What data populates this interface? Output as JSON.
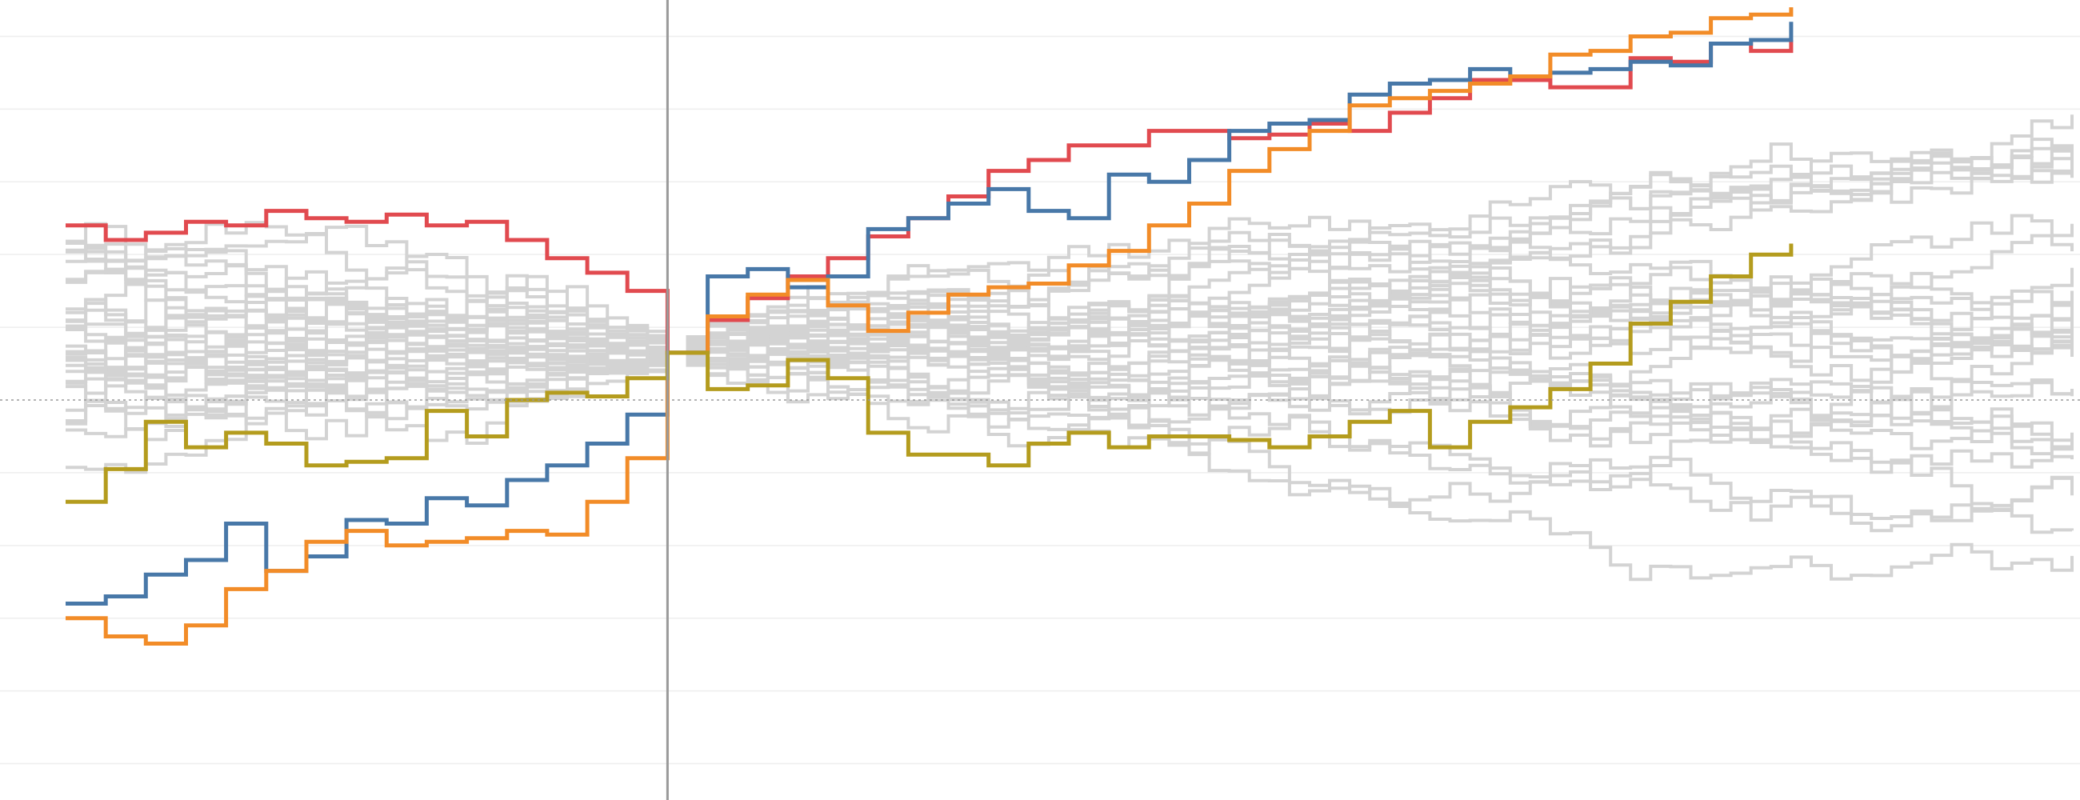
{
  "chart_data": {
    "type": "line",
    "step": true,
    "title": "",
    "xlabel": "",
    "ylabel": "",
    "xlim": [
      -15,
      35
    ],
    "ylim": [
      -11,
      11
    ],
    "zero_x": 0,
    "zero_y": 0,
    "grid": {
      "horizontal": true,
      "vertical": false,
      "levels": [
        -10,
        -8,
        -6,
        -4,
        -2,
        0,
        2,
        4,
        6,
        8,
        10
      ]
    },
    "legend": "none",
    "tick_labels": [],
    "colors": {
      "background": "#ffffff",
      "gridline": "#eeeeee",
      "zero_line": "#9a9a9a",
      "reference_line": "#9a9a9a",
      "context_series": "#d3d3d3",
      "highlight": [
        "#e14a4f",
        "#4878a8",
        "#f28c28",
        "#b49c1e"
      ]
    },
    "context": {
      "count": 32,
      "seed": 20240531,
      "x_range": [
        -15,
        35
      ],
      "anchor_x": 0,
      "note_hidden": true
    },
    "series": [
      {
        "color": "#e14a4f",
        "highlight": true,
        "points": [
          [
            -15,
            4.8
          ],
          [
            -14,
            4.4
          ],
          [
            -13,
            4.6
          ],
          [
            -12,
            4.9
          ],
          [
            -11,
            4.8
          ],
          [
            -10,
            5.2
          ],
          [
            -9,
            5.0
          ],
          [
            -8,
            4.9
          ],
          [
            -7,
            5.1
          ],
          [
            -6,
            4.8
          ],
          [
            -5,
            4.9
          ],
          [
            -4,
            4.4
          ],
          [
            -3,
            3.9
          ],
          [
            -2,
            3.5
          ],
          [
            -1,
            3.0
          ],
          [
            0,
            1.3
          ],
          [
            1,
            2.2
          ],
          [
            2,
            2.8
          ],
          [
            3,
            3.4
          ],
          [
            4,
            3.9
          ],
          [
            5,
            4.5
          ],
          [
            6,
            5.0
          ],
          [
            7,
            5.6
          ],
          [
            8,
            6.3
          ],
          [
            9,
            6.6
          ],
          [
            10,
            7.0
          ],
          [
            11,
            7.0
          ],
          [
            12,
            7.4
          ],
          [
            13,
            7.4
          ],
          [
            14,
            7.2
          ],
          [
            15,
            7.3
          ],
          [
            16,
            7.6
          ],
          [
            17,
            7.4
          ],
          [
            18,
            7.9
          ],
          [
            19,
            8.3
          ],
          [
            20,
            8.8
          ],
          [
            21,
            8.8
          ],
          [
            22,
            8.6
          ],
          [
            23,
            8.6
          ],
          [
            24,
            9.4
          ],
          [
            25,
            9.3
          ],
          [
            26,
            9.8
          ],
          [
            27,
            9.6
          ],
          [
            28,
            9.9
          ]
        ]
      },
      {
        "color": "#4878a8",
        "highlight": true,
        "points": [
          [
            -15,
            -5.6
          ],
          [
            -14,
            -5.4
          ],
          [
            -13,
            -4.8
          ],
          [
            -12,
            -4.4
          ],
          [
            -11,
            -3.4
          ],
          [
            -10,
            -4.7
          ],
          [
            -9,
            -4.3
          ],
          [
            -8,
            -3.3
          ],
          [
            -7,
            -3.4
          ],
          [
            -6,
            -2.7
          ],
          [
            -5,
            -2.9
          ],
          [
            -4,
            -2.2
          ],
          [
            -3,
            -1.8
          ],
          [
            -2,
            -1.2
          ],
          [
            -1,
            -0.4
          ],
          [
            0,
            1.3
          ],
          [
            1,
            3.4
          ],
          [
            2,
            3.6
          ],
          [
            3,
            3.1
          ],
          [
            4,
            3.4
          ],
          [
            5,
            4.7
          ],
          [
            6,
            5.0
          ],
          [
            7,
            5.4
          ],
          [
            8,
            5.8
          ],
          [
            9,
            5.2
          ],
          [
            10,
            5.0
          ],
          [
            11,
            6.2
          ],
          [
            12,
            6.0
          ],
          [
            13,
            6.6
          ],
          [
            14,
            7.4
          ],
          [
            15,
            7.6
          ],
          [
            16,
            7.7
          ],
          [
            17,
            8.4
          ],
          [
            18,
            8.7
          ],
          [
            19,
            8.8
          ],
          [
            20,
            9.1
          ],
          [
            21,
            8.9
          ],
          [
            22,
            9.0
          ],
          [
            23,
            9.1
          ],
          [
            24,
            9.3
          ],
          [
            25,
            9.2
          ],
          [
            26,
            9.8
          ],
          [
            27,
            9.9
          ],
          [
            28,
            10.4
          ]
        ]
      },
      {
        "color": "#f28c28",
        "highlight": true,
        "points": [
          [
            -15,
            -6.0
          ],
          [
            -14,
            -6.5
          ],
          [
            -13,
            -6.7
          ],
          [
            -12,
            -6.2
          ],
          [
            -11,
            -5.2
          ],
          [
            -10,
            -4.7
          ],
          [
            -9,
            -3.9
          ],
          [
            -8,
            -3.6
          ],
          [
            -7,
            -4.0
          ],
          [
            -6,
            -3.9
          ],
          [
            -5,
            -3.8
          ],
          [
            -4,
            -3.6
          ],
          [
            -3,
            -3.7
          ],
          [
            -2,
            -2.8
          ],
          [
            -1,
            -1.6
          ],
          [
            0,
            1.3
          ],
          [
            1,
            2.3
          ],
          [
            2,
            2.9
          ],
          [
            3,
            3.3
          ],
          [
            4,
            2.6
          ],
          [
            5,
            1.9
          ],
          [
            6,
            2.4
          ],
          [
            7,
            2.9
          ],
          [
            8,
            3.1
          ],
          [
            9,
            3.2
          ],
          [
            10,
            3.7
          ],
          [
            11,
            4.1
          ],
          [
            12,
            4.8
          ],
          [
            13,
            5.4
          ],
          [
            14,
            6.3
          ],
          [
            15,
            6.9
          ],
          [
            16,
            7.4
          ],
          [
            17,
            8.1
          ],
          [
            18,
            8.3
          ],
          [
            19,
            8.5
          ],
          [
            20,
            8.7
          ],
          [
            21,
            8.9
          ],
          [
            22,
            9.5
          ],
          [
            23,
            9.6
          ],
          [
            24,
            10.0
          ],
          [
            25,
            10.1
          ],
          [
            26,
            10.5
          ],
          [
            27,
            10.6
          ],
          [
            28,
            10.8
          ]
        ]
      },
      {
        "color": "#b49c1e",
        "highlight": true,
        "points": [
          [
            -15,
            -2.8
          ],
          [
            -14,
            -1.9
          ],
          [
            -13,
            -0.6
          ],
          [
            -12,
            -1.3
          ],
          [
            -11,
            -0.9
          ],
          [
            -10,
            -1.2
          ],
          [
            -9,
            -1.8
          ],
          [
            -8,
            -1.7
          ],
          [
            -7,
            -1.6
          ],
          [
            -6,
            -0.3
          ],
          [
            -5,
            -1.0
          ],
          [
            -4,
            0.0
          ],
          [
            -3,
            0.2
          ],
          [
            -2,
            0.1
          ],
          [
            -1,
            0.6
          ],
          [
            0,
            1.3
          ],
          [
            1,
            0.3
          ],
          [
            2,
            0.4
          ],
          [
            3,
            1.1
          ],
          [
            4,
            0.6
          ],
          [
            5,
            -0.9
          ],
          [
            6,
            -1.5
          ],
          [
            7,
            -1.5
          ],
          [
            8,
            -1.8
          ],
          [
            9,
            -1.2
          ],
          [
            10,
            -0.9
          ],
          [
            11,
            -1.3
          ],
          [
            12,
            -1.0
          ],
          [
            13,
            -1.0
          ],
          [
            14,
            -1.1
          ],
          [
            15,
            -1.3
          ],
          [
            16,
            -1.0
          ],
          [
            17,
            -0.6
          ],
          [
            18,
            -0.3
          ],
          [
            19,
            -1.3
          ],
          [
            20,
            -0.6
          ],
          [
            21,
            -0.2
          ],
          [
            22,
            0.3
          ],
          [
            23,
            1.0
          ],
          [
            24,
            2.1
          ],
          [
            25,
            2.7
          ],
          [
            26,
            3.4
          ],
          [
            27,
            4.0
          ],
          [
            28,
            4.3
          ]
        ]
      }
    ]
  }
}
